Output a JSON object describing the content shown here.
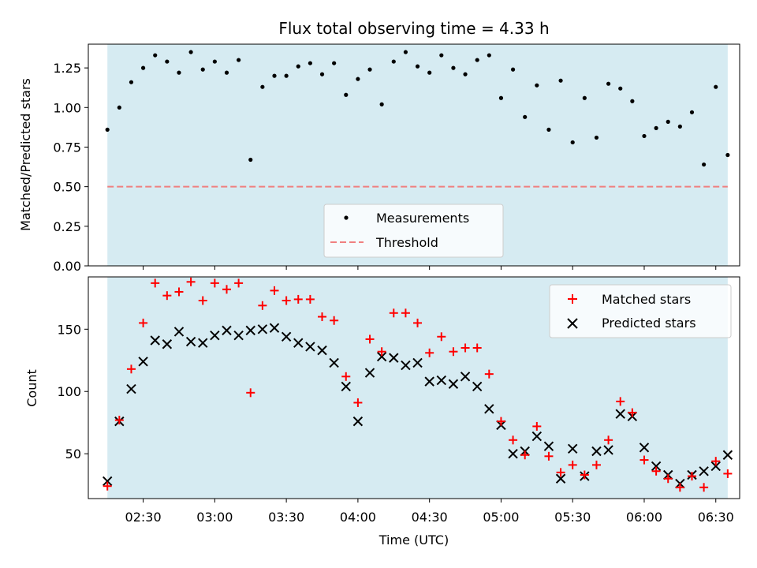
{
  "chart_data": [
    {
      "type": "scatter",
      "title": "Flux total observing time = 4.33 h",
      "ylabel": "Matched/Predicted stars",
      "xlabel": "",
      "xlim": [
        "02:07",
        "06:40"
      ],
      "ylim": [
        0,
        1.4
      ],
      "yticks": [
        0,
        0.25,
        0.5,
        0.75,
        1.0,
        1.25
      ],
      "ytick_labels": [
        "0.00",
        "0.25",
        "0.50",
        "0.75",
        "1.00",
        "1.25"
      ],
      "shaded_region": {
        "start": "02:15",
        "end": "06:35",
        "color": "#add8e6"
      },
      "threshold": {
        "name": "Threshold",
        "value": 0.5,
        "color": "#f08080"
      },
      "legend": {
        "position": "lower-center",
        "entries": [
          "Measurements",
          "Threshold"
        ]
      },
      "series": [
        {
          "name": "Measurements",
          "color": "#000000",
          "x": [
            "02:15",
            "02:20",
            "02:25",
            "02:30",
            "02:35",
            "02:40",
            "02:45",
            "02:50",
            "02:55",
            "03:00",
            "03:05",
            "03:10",
            "03:15",
            "03:20",
            "03:25",
            "03:30",
            "03:35",
            "03:40",
            "03:45",
            "03:50",
            "03:55",
            "04:00",
            "04:05",
            "04:10",
            "04:15",
            "04:20",
            "04:25",
            "04:30",
            "04:35",
            "04:40",
            "04:45",
            "04:50",
            "04:55",
            "05:00",
            "05:05",
            "05:10",
            "05:15",
            "05:20",
            "05:25",
            "05:30",
            "05:35",
            "05:40",
            "05:45",
            "05:50",
            "05:55",
            "06:00",
            "06:05",
            "06:10",
            "06:15",
            "06:20",
            "06:25",
            "06:30",
            "06:35"
          ],
          "y": [
            0.86,
            1.0,
            1.16,
            1.25,
            1.33,
            1.29,
            1.22,
            1.35,
            1.24,
            1.29,
            1.22,
            1.3,
            0.67,
            1.13,
            1.2,
            1.2,
            1.26,
            1.28,
            1.21,
            1.28,
            1.08,
            1.18,
            1.24,
            1.02,
            1.29,
            1.35,
            1.26,
            1.22,
            1.33,
            1.25,
            1.21,
            1.3,
            1.33,
            1.06,
            1.24,
            0.94,
            1.14,
            0.86,
            1.17,
            0.78,
            1.06,
            0.81,
            1.15,
            1.12,
            1.04,
            0.82,
            0.87,
            0.91,
            0.88,
            0.97,
            0.64,
            1.13,
            0.7
          ]
        }
      ]
    },
    {
      "type": "scatter",
      "title": "",
      "ylabel": "Count",
      "xlabel": "Time (UTC)",
      "xlim": [
        "02:07",
        "06:40"
      ],
      "ylim": [
        14,
        192
      ],
      "yticks": [
        50,
        100,
        150
      ],
      "ytick_labels": [
        "50",
        "100",
        "150"
      ],
      "xticks": [
        "02:30",
        "03:00",
        "03:30",
        "04:00",
        "04:30",
        "05:00",
        "05:30",
        "06:00",
        "06:30"
      ],
      "shaded_region": {
        "start": "02:15",
        "end": "06:35",
        "color": "#add8e6"
      },
      "legend": {
        "position": "top-right",
        "entries": [
          "Matched stars",
          "Predicted stars"
        ]
      },
      "x": [
        "02:15",
        "02:20",
        "02:25",
        "02:30",
        "02:35",
        "02:40",
        "02:45",
        "02:50",
        "02:55",
        "03:00",
        "03:05",
        "03:10",
        "03:15",
        "03:20",
        "03:25",
        "03:30",
        "03:35",
        "03:40",
        "03:45",
        "03:50",
        "03:55",
        "04:00",
        "04:05",
        "04:10",
        "04:15",
        "04:20",
        "04:25",
        "04:30",
        "04:35",
        "04:40",
        "04:45",
        "04:50",
        "04:55",
        "05:00",
        "05:05",
        "05:10",
        "05:15",
        "05:20",
        "05:25",
        "05:30",
        "05:35",
        "05:40",
        "05:45",
        "05:50",
        "05:55",
        "06:00",
        "06:05",
        "06:10",
        "06:15",
        "06:20",
        "06:25",
        "06:30",
        "06:35"
      ],
      "series": [
        {
          "name": "Matched stars",
          "color": "#ff0000",
          "marker": "plus",
          "values": [
            24,
            77,
            118,
            155,
            187,
            177,
            180,
            188,
            173,
            187,
            182,
            187,
            99,
            169,
            181,
            173,
            174,
            174,
            160,
            157,
            112,
            91,
            142,
            132,
            163,
            163,
            155,
            131,
            144,
            132,
            135,
            135,
            114,
            76,
            61,
            49,
            72,
            48,
            35,
            41,
            33,
            41,
            61,
            92,
            83,
            45,
            36,
            30,
            23,
            32,
            23,
            44,
            34
          ]
        },
        {
          "name": "Predicted stars",
          "color": "#000000",
          "marker": "x",
          "values": [
            28,
            76,
            102,
            124,
            141,
            138,
            148,
            140,
            139,
            145,
            149,
            145,
            149,
            150,
            151,
            144,
            139,
            136,
            133,
            123,
            104,
            76,
            115,
            128,
            127,
            121,
            123,
            108,
            109,
            106,
            112,
            104,
            86,
            73,
            50,
            52,
            64,
            56,
            30,
            54,
            32,
            52,
            53,
            82,
            80,
            55,
            40,
            33,
            26,
            33,
            36,
            40,
            49
          ]
        }
      ]
    }
  ]
}
